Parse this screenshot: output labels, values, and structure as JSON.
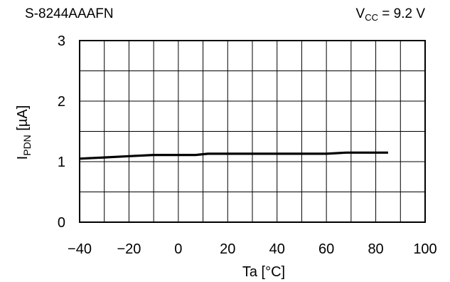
{
  "header": {
    "part_number": "S-8244AAAFN",
    "condition": {
      "symbol": "V",
      "subscript": "CC",
      "rest": " = 9.2 V"
    }
  },
  "chart_data": {
    "type": "line",
    "title": "",
    "xlabel": "Ta [°C]",
    "ylabel": {
      "symbol": "I",
      "subscript": "PDN",
      "unit": " [µA]"
    },
    "xlim": [
      -40,
      100
    ],
    "ylim": [
      0,
      3
    ],
    "x_ticks": [
      -40,
      -20,
      0,
      20,
      40,
      60,
      80,
      100
    ],
    "x_tick_labels": [
      "−40",
      "−20",
      "0",
      "20",
      "40",
      "60",
      "80",
      "100"
    ],
    "y_ticks": [
      0,
      1,
      2,
      3
    ],
    "y_tick_labels": [
      "0",
      "1",
      "2",
      "3"
    ],
    "grid": {
      "x_step": 10,
      "y_step": 0.5,
      "enabled": true
    },
    "legend": "none",
    "series": [
      {
        "x": [
          -40,
          -30,
          -20,
          -10,
          0,
          7,
          12,
          20,
          40,
          60,
          68,
          85
        ],
        "y": [
          1.05,
          1.07,
          1.09,
          1.11,
          1.11,
          1.11,
          1.13,
          1.13,
          1.13,
          1.13,
          1.15,
          1.15
        ]
      }
    ]
  }
}
